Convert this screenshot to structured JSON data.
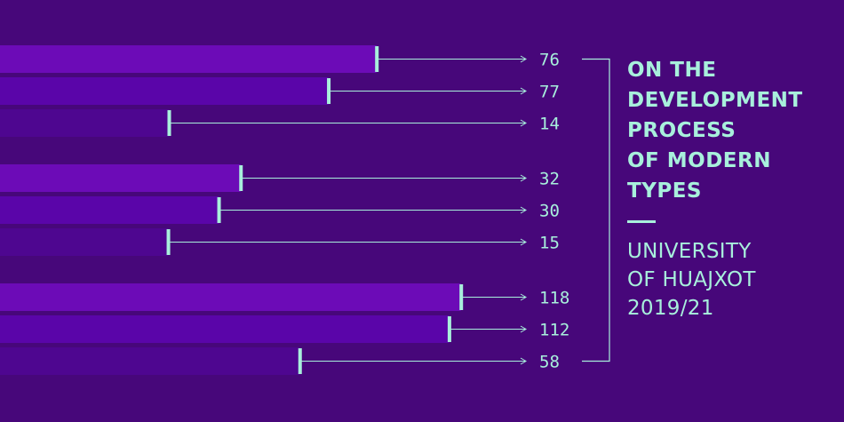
{
  "chart_data": {
    "type": "bar",
    "orientation": "horizontal",
    "groups": [
      {
        "values": [
          76,
          77,
          14
        ]
      },
      {
        "values": [
          32,
          30,
          15
        ]
      },
      {
        "values": [
          118,
          112,
          58
        ]
      }
    ],
    "data_labels": [
      "76",
      "77",
      "14",
      "32",
      "30",
      "15",
      "118",
      "112",
      "58"
    ],
    "bar_extents": [
      0.446,
      0.389,
      0.2,
      0.285,
      0.259,
      0.199,
      0.546,
      0.532,
      0.355
    ],
    "title": "ON THE\nDEVELOPMENT\nPROCESS\nOF MODERN\nTYPES",
    "subtitle": "UNIVERSITY\nOF HUAJXOT\n2019/21",
    "grid": false,
    "legend": "none"
  },
  "colors": {
    "background": "#47077a",
    "accent": "#a8f0dc",
    "bar_shades": [
      "#6c0bb7",
      "#5a05a9",
      "#4e0690"
    ]
  }
}
